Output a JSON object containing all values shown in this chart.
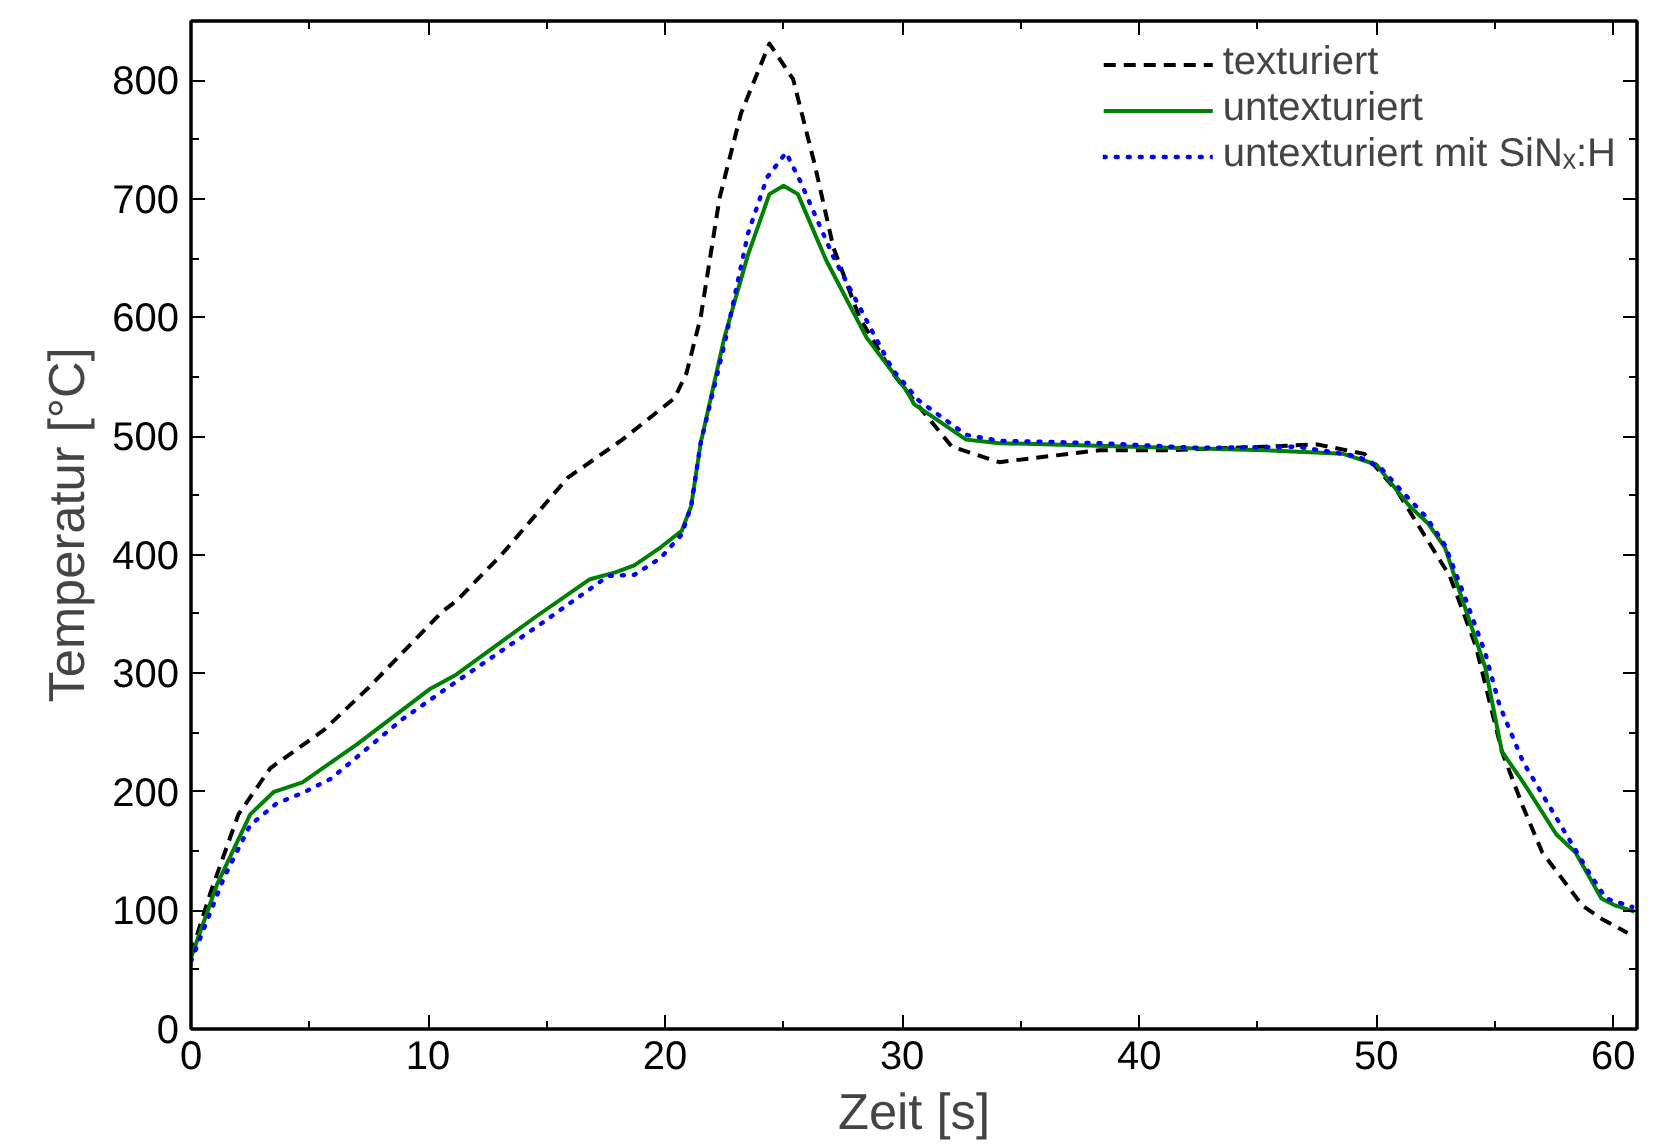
{
  "chart_data": {
    "type": "line",
    "xlabel": "Zeit [s]",
    "ylabel": "Temperatur [°C]",
    "xlim": [
      0,
      61
    ],
    "ylim": [
      0,
      850
    ],
    "xticks": [
      0,
      10,
      20,
      30,
      40,
      50,
      60
    ],
    "yticks": [
      0,
      100,
      200,
      300,
      400,
      500,
      600,
      700,
      800
    ],
    "grid": false,
    "legend": "top right",
    "marker": "none",
    "series": [
      {
        "name": "texturiert",
        "color": "#000000",
        "line_style": "dashed",
        "x": [
          0,
          0.84,
          2,
          3.35,
          5.6,
          7.5,
          10.6,
          11.2,
          13.1,
          15.9,
          18.2,
          20.4,
          20.9,
          21.5,
          22.3,
          23.2,
          24.4,
          25.4,
          26.3,
          27.1,
          28.2,
          29.6,
          30.5,
          32.1,
          34.1,
          38.3,
          41.1,
          45.3,
          47.5,
          49.5,
          50.9,
          52.2,
          53.1,
          54.2,
          55.3,
          56.2,
          57.0,
          58.7,
          59.5,
          60.6
        ],
        "values": [
          63,
          116,
          181,
          220,
          252,
          288,
          352,
          361,
          400,
          465,
          497,
          532,
          553,
          600,
          701,
          772,
          831,
          801,
          730,
          659,
          600,
          553,
          530,
          491,
          478,
          488,
          488,
          491,
          493,
          485,
          453,
          411,
          382,
          323,
          234,
          187,
          149,
          104,
          93,
          81
        ]
      },
      {
        "name": "untexturiert",
        "color": "#008000",
        "line_style": "solid",
        "x": [
          0,
          1.1,
          2.5,
          3.5,
          4.7,
          7.0,
          10.1,
          11.2,
          14.5,
          16.8,
          17.9,
          18.7,
          19.8,
          20.7,
          21.1,
          21.5,
          22.5,
          23.5,
          24.4,
          25.0,
          25.6,
          26.8,
          28.5,
          30.2,
          30.5,
          32.7,
          34.1,
          39.7,
          45.3,
          48.6,
          50.0,
          51.4,
          52.2,
          52.9,
          53.6,
          54.6,
          55.3,
          56.2,
          57.6,
          58.4,
          59.5,
          60.1,
          60.9
        ],
        "values": [
          60,
          122,
          181,
          200,
          208,
          240,
          287,
          299,
          347,
          379,
          385,
          391,
          406,
          420,
          441,
          494,
          583,
          653,
          704,
          711,
          704,
          648,
          583,
          538,
          527,
          497,
          494,
          491,
          488,
          485,
          476,
          441,
          426,
          406,
          364,
          305,
          234,
          208,
          164,
          149,
          110,
          104,
          99
        ]
      },
      {
        "name": "untexturiert mit SiNₓ:H",
        "color": "#0000ff",
        "line_style": "dotted",
        "x": [
          0,
          1.4,
          2.5,
          3.6,
          4.7,
          5.9,
          8.9,
          11.2,
          14.5,
          17.6,
          18.7,
          19.8,
          20.7,
          21.1,
          21.5,
          22.5,
          23.5,
          24.3,
          25.1,
          25.7,
          27.1,
          28.8,
          29.6,
          30.7,
          32.7,
          34.1,
          38.3,
          42.5,
          46.7,
          49.2,
          50.2,
          51.1,
          52.1,
          52.9,
          53.8,
          54.6,
          55.2,
          56.2,
          57.6,
          59.0,
          59.7,
          60.8
        ],
        "values": [
          57,
          128,
          172,
          190,
          199,
          211,
          261,
          293,
          338,
          382,
          383,
          397,
          417,
          441,
          494,
          577,
          671,
          718,
          739,
          715,
          651,
          586,
          556,
          530,
          501,
          496,
          494,
          490,
          491,
          483,
          473,
          453,
          432,
          408,
          361,
          317,
          273,
          225,
          178,
          131,
          110,
          103
        ]
      }
    ]
  }
}
